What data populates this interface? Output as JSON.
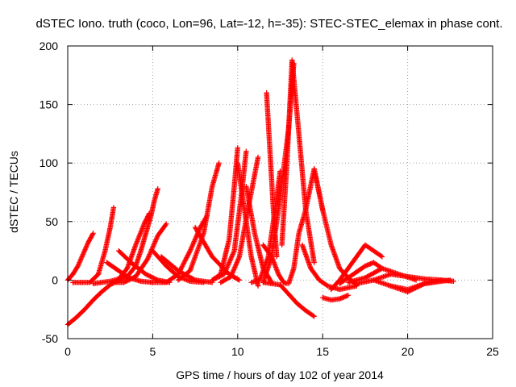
{
  "chart_data": {
    "type": "scatter",
    "title": "dSTEC Iono. truth (coco, Lon=96, Lat=-12, h=-35): STEC-STEC_elemax in phase cont.",
    "xlabel": "GPS time / hours of day 102 of year 2014",
    "ylabel": "dSTEC  / TECUs",
    "xlim": [
      0,
      25
    ],
    "ylim": [
      -50,
      200
    ],
    "xticks": [
      0,
      5,
      10,
      15,
      20,
      25
    ],
    "yticks": [
      -50,
      0,
      50,
      100,
      150,
      200
    ],
    "grid": true,
    "marker": "+",
    "marker_color": "#ff0000",
    "series": [
      {
        "x": [
          0.0,
          0.3,
          0.6,
          0.9,
          1.2,
          1.5
        ],
        "y": [
          0,
          5,
          12,
          22,
          32,
          40
        ]
      },
      {
        "x": [
          0.3,
          0.8,
          1.3,
          1.8,
          2.2,
          2.5,
          2.7
        ],
        "y": [
          -2,
          -2,
          -2,
          5,
          25,
          45,
          62
        ]
      },
      {
        "x": [
          0.0,
          0.5,
          1.0,
          1.5,
          2.0,
          2.5,
          3.0,
          3.5,
          4.0,
          4.3,
          4.6,
          4.9,
          5.1,
          5.3
        ],
        "y": [
          -38,
          -32,
          -25,
          -17,
          -10,
          -4,
          0,
          3,
          12,
          25,
          40,
          55,
          68,
          78
        ]
      },
      {
        "x": [
          1.5,
          2.0,
          2.5,
          3.0,
          3.5,
          4.0,
          4.5,
          4.8
        ],
        "y": [
          -3,
          -2,
          -1,
          1,
          10,
          30,
          48,
          57
        ]
      },
      {
        "x": [
          2.3,
          3.0,
          3.6,
          4.3,
          5.0
        ],
        "y": [
          15,
          8,
          2,
          -1,
          -2
        ]
      },
      {
        "x": [
          3.0,
          3.8,
          4.6,
          5.3,
          6.0
        ],
        "y": [
          25,
          14,
          5,
          0,
          -2
        ]
      },
      {
        "x": [
          2.6,
          3.3,
          4.0,
          4.7,
          5.3,
          5.8
        ],
        "y": [
          -2,
          -2,
          3,
          18,
          38,
          48
        ]
      },
      {
        "x": [
          5.0,
          5.8,
          6.5,
          7.2,
          7.8,
          8.2
        ],
        "y": [
          -2,
          -2,
          5,
          25,
          45,
          55
        ]
      },
      {
        "x": [
          5.0,
          5.8,
          6.5,
          7.2,
          8.0
        ],
        "y": [
          25,
          12,
          3,
          -1,
          -2
        ]
      },
      {
        "x": [
          5.5,
          6.5,
          7.5,
          8.5
        ],
        "y": [
          20,
          8,
          0,
          -2
        ]
      },
      {
        "x": [
          6.5,
          7.2,
          8.0,
          8.5,
          8.9
        ],
        "y": [
          0,
          8,
          40,
          80,
          100
        ]
      },
      {
        "x": [
          7.5,
          8.5,
          9.5,
          10.1
        ],
        "y": [
          45,
          20,
          5,
          0
        ]
      },
      {
        "x": [
          8.5,
          9.0,
          9.5,
          9.8,
          10.0
        ],
        "y": [
          0,
          5,
          35,
          80,
          113
        ]
      },
      {
        "x": [
          8.5,
          9.2,
          9.8,
          10.2,
          10.5
        ],
        "y": [
          0,
          5,
          25,
          70,
          110
        ]
      },
      {
        "x": [
          9.0,
          9.6,
          10.1,
          10.6,
          11.2
        ],
        "y": [
          -2,
          3,
          20,
          60,
          105
        ]
      },
      {
        "x": [
          10.0,
          10.4,
          10.8,
          11.2
        ],
        "y": [
          100,
          60,
          20,
          -5
        ]
      },
      {
        "x": [
          10.5,
          11.0,
          11.5,
          12.0
        ],
        "y": [
          80,
          40,
          10,
          -2
        ]
      },
      {
        "x": [
          10.8,
          11.3,
          11.8,
          12.2,
          12.5
        ],
        "y": [
          -2,
          0,
          20,
          60,
          93
        ]
      },
      {
        "x": [
          11.5,
          12.0,
          12.5,
          13.0,
          13.5,
          14.0,
          14.5
        ],
        "y": [
          -2,
          -3,
          -4,
          -12,
          -20,
          -26,
          -31
        ]
      },
      {
        "x": [
          11.5,
          12.0,
          12.4,
          12.7,
          12.9
        ],
        "y": [
          30,
          20,
          5,
          -2,
          -3
        ]
      },
      {
        "x": [
          11.5,
          12.0,
          12.5,
          13.0,
          13.3
        ],
        "y": [
          -2,
          20,
          70,
          130,
          185
        ]
      },
      {
        "x": [
          11.7,
          11.9,
          12.1,
          12.3
        ],
        "y": [
          160,
          110,
          60,
          20
        ]
      },
      {
        "x": [
          12.6,
          12.9,
          13.2,
          13.6,
          14.0,
          14.5
        ],
        "y": [
          30,
          100,
          188,
          125,
          60,
          15
        ]
      },
      {
        "x": [
          13.0,
          13.3,
          13.6,
          14.0,
          14.5,
          15.0
        ],
        "y": [
          -3,
          10,
          40,
          60,
          95,
          60
        ]
      },
      {
        "x": [
          13.8,
          14.3,
          14.8,
          15.3,
          16.0,
          17.0
        ],
        "y": [
          30,
          10,
          0,
          -5,
          -8,
          -5
        ]
      },
      {
        "x": [
          14.5,
          15.0,
          15.5,
          16.0,
          16.5,
          17.0
        ],
        "y": [
          95,
          60,
          30,
          10,
          2,
          -4
        ]
      },
      {
        "x": [
          15.0,
          15.5,
          16.0,
          16.5
        ],
        "y": [
          -15,
          -17,
          -16,
          -13
        ]
      },
      {
        "x": [
          15.5,
          16.0,
          16.5,
          17.0,
          17.5,
          18.0,
          18.5
        ],
        "y": [
          -8,
          0,
          10,
          20,
          30,
          25,
          20
        ]
      },
      {
        "x": [
          16.0,
          16.8,
          17.5,
          18.0,
          18.5
        ],
        "y": [
          -3,
          5,
          12,
          15,
          10
        ]
      },
      {
        "x": [
          16.5,
          17.5,
          18.5,
          19.5,
          20.5
        ],
        "y": [
          -2,
          2,
          10,
          5,
          0
        ]
      },
      {
        "x": [
          17.0,
          18.0,
          19.0,
          20.0,
          21.0,
          22.0,
          22.7
        ],
        "y": [
          -3,
          0,
          5,
          3,
          1,
          0,
          -1
        ]
      },
      {
        "x": [
          18.0,
          19.0,
          20.0,
          21.0,
          22.0
        ],
        "y": [
          0,
          -5,
          -10,
          -3,
          0
        ]
      },
      {
        "x": [
          19.0,
          20.0,
          21.0,
          22.0,
          22.5
        ],
        "y": [
          -5,
          -8,
          -3,
          -1,
          0
        ]
      }
    ]
  }
}
